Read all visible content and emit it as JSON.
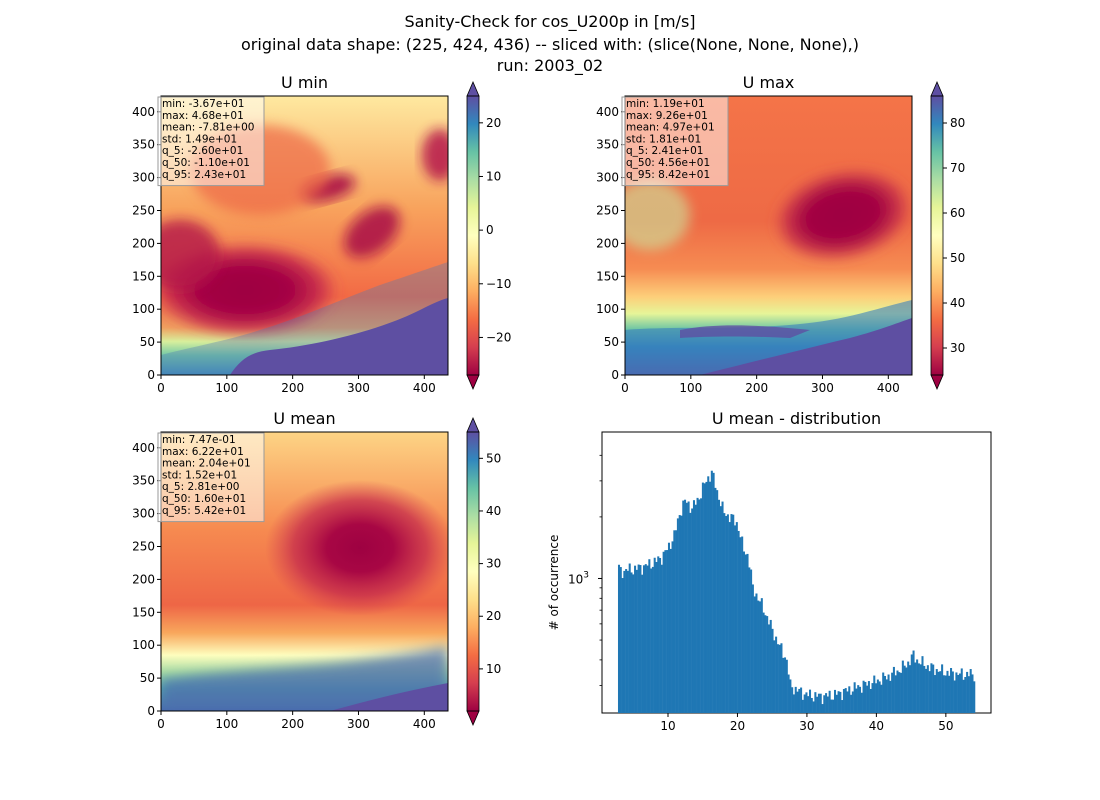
{
  "figure": {
    "suptitle_lines": [
      "Sanity-Check for cos_U200p in [m/s]",
      "original data shape: (225, 424, 436) -- sliced with: (slice(None, None, None),)",
      "run: 2003_02"
    ]
  },
  "colors": {
    "spectral": [
      "#9e0142",
      "#d53e4f",
      "#f46d43",
      "#fdae61",
      "#fee08b",
      "#ffffbf",
      "#e6f598",
      "#abdda4",
      "#66c2a5",
      "#3288bd",
      "#5e4fa2"
    ],
    "hist_bar": "#1f77b4"
  },
  "chart_data": [
    {
      "type": "heatmap",
      "title": "U min",
      "xlim": [
        0,
        436
      ],
      "ylim": [
        0,
        424
      ],
      "xticks": [
        0,
        100,
        200,
        300,
        400
      ],
      "yticks": [
        0,
        50,
        100,
        150,
        200,
        250,
        300,
        350,
        400
      ],
      "colorbar": {
        "range": [
          -27,
          25
        ],
        "ticks": [
          -20,
          -10,
          0,
          10,
          20
        ],
        "extend": "both"
      },
      "stats": [
        "min: -3.67e+01",
        "max: 4.68e+01",
        "mean: -7.81e+00",
        "std: 1.49e+01",
        "q_5: -2.60e+01",
        "q_50: -1.10e+01",
        "q_95: 2.43e+01"
      ]
    },
    {
      "type": "heatmap",
      "title": "U max",
      "xlim": [
        0,
        436
      ],
      "ylim": [
        0,
        424
      ],
      "xticks": [
        0,
        100,
        200,
        300,
        400
      ],
      "yticks": [
        0,
        50,
        100,
        150,
        200,
        250,
        300,
        350,
        400
      ],
      "colorbar": {
        "range": [
          24,
          86
        ],
        "ticks": [
          30,
          40,
          50,
          60,
          70,
          80
        ],
        "extend": "both"
      },
      "stats": [
        "min: 1.19e+01",
        "max: 9.26e+01",
        "mean: 4.97e+01",
        "std: 1.81e+01",
        "q_5: 2.41e+01",
        "q_50: 4.56e+01",
        "q_95: 8.42e+01"
      ]
    },
    {
      "type": "heatmap",
      "title": "U mean",
      "xlim": [
        0,
        436
      ],
      "ylim": [
        0,
        424
      ],
      "xticks": [
        0,
        100,
        200,
        300,
        400
      ],
      "yticks": [
        0,
        50,
        100,
        150,
        200,
        250,
        300,
        350,
        400
      ],
      "colorbar": {
        "range": [
          2,
          55
        ],
        "ticks": [
          10,
          20,
          30,
          40,
          50
        ],
        "extend": "both"
      },
      "stats": [
        "min: 7.47e-01",
        "max: 6.22e+01",
        "mean: 2.04e+01",
        "std: 1.52e+01",
        "q_5: 2.81e+00",
        "q_50: 1.60e+01",
        "q_95: 5.42e+01"
      ]
    },
    {
      "type": "bar",
      "title": "U mean - distribution",
      "ylabel": "# of occurrence",
      "yscale": "log",
      "xlim": [
        0.5,
        56.5
      ],
      "ylim": [
        220,
        5200
      ],
      "xticks": [
        10,
        20,
        30,
        40,
        50
      ],
      "ytick_major": "10^3",
      "ytick_minor": [
        300,
        400,
        500,
        600,
        700,
        800,
        900,
        2000,
        3000,
        4000
      ],
      "bin_edges": [
        2.8,
        54.2
      ],
      "profile_x": [
        2.8,
        3.2,
        4.0,
        5.0,
        6.0,
        7.0,
        8.0,
        9.0,
        10.0,
        11.0,
        11.8,
        12.5,
        13.5,
        14.5,
        15.5,
        16.3,
        17.0,
        18.0,
        19.0,
        20.0,
        20.8,
        21.5,
        22.2,
        23.0,
        24.0,
        25.0,
        26.0,
        27.0,
        27.6,
        28.5,
        30.0,
        32.0,
        34.0,
        36.0,
        38.0,
        40.0,
        41.5,
        42.5,
        43.5,
        44.5,
        45.3,
        46.0,
        47.5,
        49.0,
        50.5,
        52.0,
        54.2
      ],
      "profile_y": [
        1150,
        1080,
        1100,
        1110,
        1130,
        1160,
        1200,
        1260,
        1400,
        1650,
        2150,
        2400,
        2200,
        2500,
        3000,
        3300,
        2700,
        2100,
        2000,
        1850,
        1400,
        1300,
        900,
        800,
        680,
        560,
        470,
        410,
        300,
        285,
        270,
        265,
        270,
        285,
        300,
        315,
        330,
        345,
        360,
        385,
        420,
        395,
        370,
        355,
        345,
        340,
        340
      ]
    }
  ]
}
